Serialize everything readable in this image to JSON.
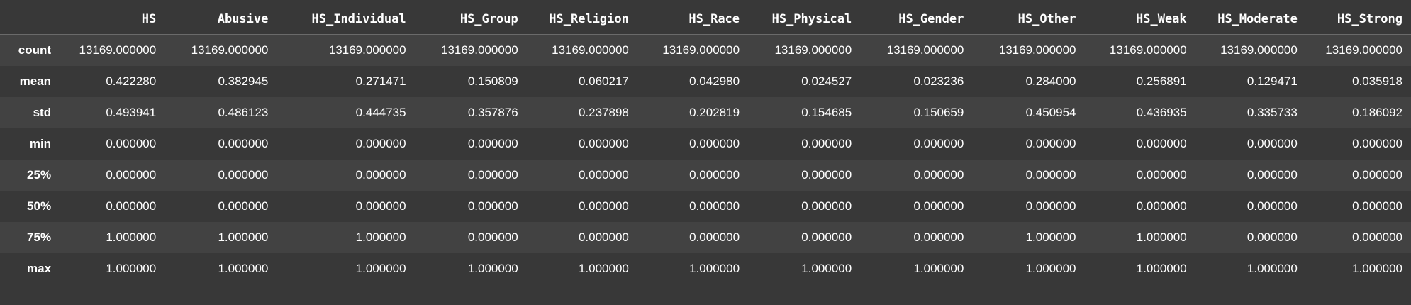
{
  "dataframe": {
    "columns": [
      "HS",
      "Abusive",
      "HS_Individual",
      "HS_Group",
      "HS_Religion",
      "HS_Race",
      "HS_Physical",
      "HS_Gender",
      "HS_Other",
      "HS_Weak",
      "HS_Moderate",
      "HS_Strong"
    ],
    "rows": [
      {
        "label": "count",
        "values": [
          "13169.000000",
          "13169.000000",
          "13169.000000",
          "13169.000000",
          "13169.000000",
          "13169.000000",
          "13169.000000",
          "13169.000000",
          "13169.000000",
          "13169.000000",
          "13169.000000",
          "13169.000000"
        ]
      },
      {
        "label": "mean",
        "values": [
          "0.422280",
          "0.382945",
          "0.271471",
          "0.150809",
          "0.060217",
          "0.042980",
          "0.024527",
          "0.023236",
          "0.284000",
          "0.256891",
          "0.129471",
          "0.035918"
        ]
      },
      {
        "label": "std",
        "values": [
          "0.493941",
          "0.486123",
          "0.444735",
          "0.357876",
          "0.237898",
          "0.202819",
          "0.154685",
          "0.150659",
          "0.450954",
          "0.436935",
          "0.335733",
          "0.186092"
        ]
      },
      {
        "label": "min",
        "values": [
          "0.000000",
          "0.000000",
          "0.000000",
          "0.000000",
          "0.000000",
          "0.000000",
          "0.000000",
          "0.000000",
          "0.000000",
          "0.000000",
          "0.000000",
          "0.000000"
        ]
      },
      {
        "label": "25%",
        "values": [
          "0.000000",
          "0.000000",
          "0.000000",
          "0.000000",
          "0.000000",
          "0.000000",
          "0.000000",
          "0.000000",
          "0.000000",
          "0.000000",
          "0.000000",
          "0.000000"
        ]
      },
      {
        "label": "50%",
        "values": [
          "0.000000",
          "0.000000",
          "0.000000",
          "0.000000",
          "0.000000",
          "0.000000",
          "0.000000",
          "0.000000",
          "0.000000",
          "0.000000",
          "0.000000",
          "0.000000"
        ]
      },
      {
        "label": "75%",
        "values": [
          "1.000000",
          "1.000000",
          "1.000000",
          "0.000000",
          "0.000000",
          "0.000000",
          "0.000000",
          "0.000000",
          "1.000000",
          "1.000000",
          "0.000000",
          "0.000000"
        ]
      },
      {
        "label": "max",
        "values": [
          "1.000000",
          "1.000000",
          "1.000000",
          "1.000000",
          "1.000000",
          "1.000000",
          "1.000000",
          "1.000000",
          "1.000000",
          "1.000000",
          "1.000000",
          "1.000000"
        ]
      }
    ]
  },
  "theme": {
    "background": "#383838",
    "row_alt": "#424242",
    "text": "#ffffff"
  }
}
